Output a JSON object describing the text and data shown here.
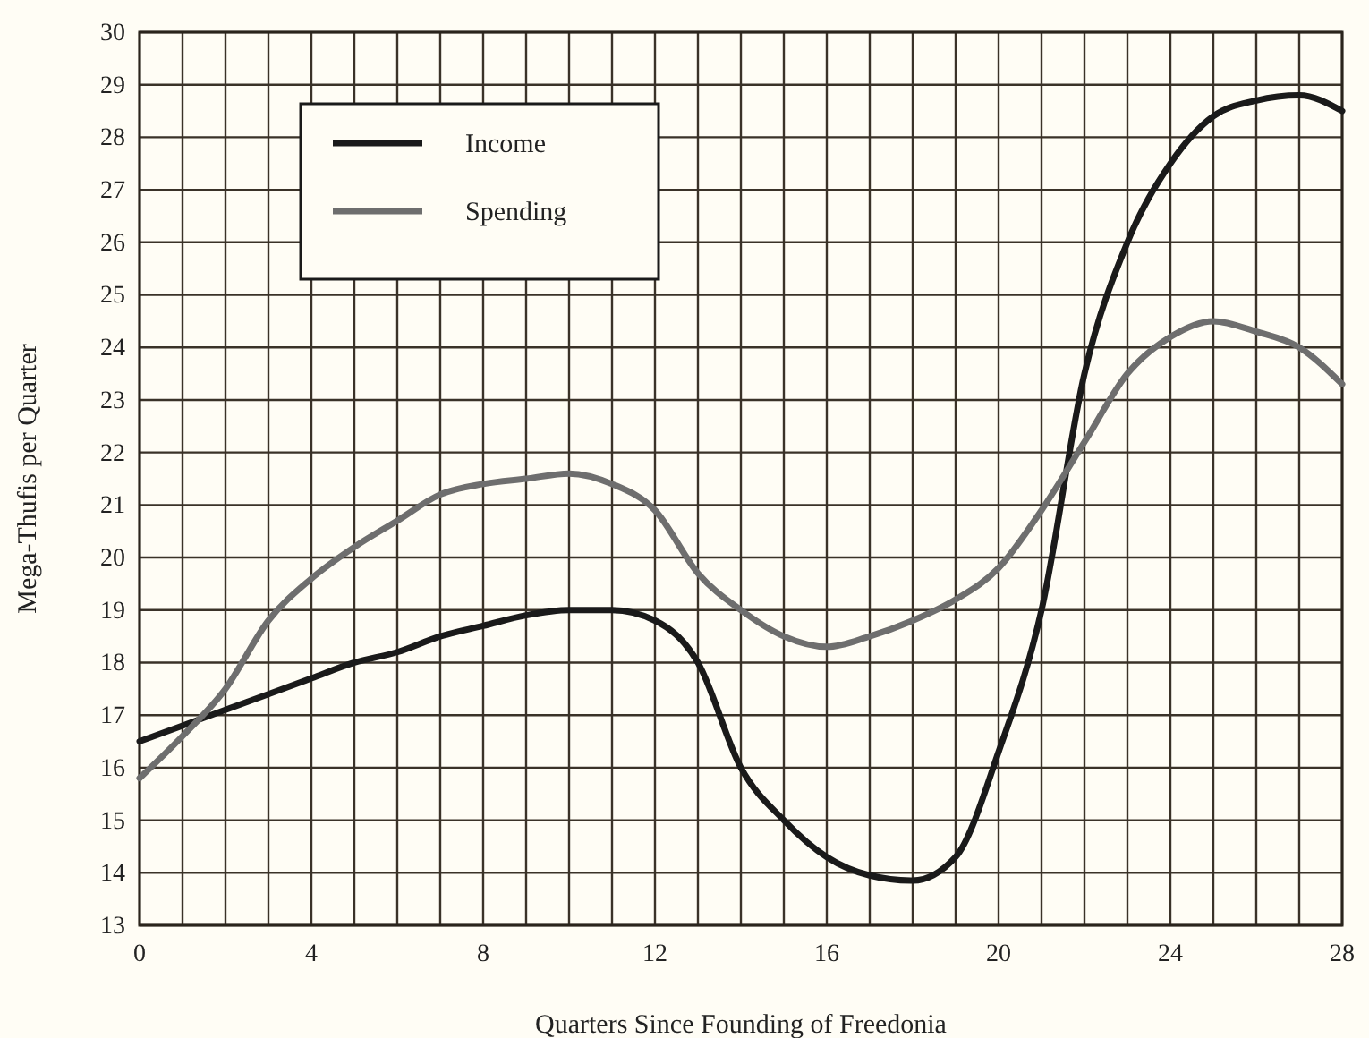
{
  "chart_data": {
    "type": "line",
    "xlabel": "Quarters Since Founding of Freedonia",
    "ylabel": "Mega-Thufis per Quarter",
    "x": [
      0,
      1,
      2,
      3,
      4,
      5,
      6,
      7,
      8,
      9,
      10,
      11,
      12,
      13,
      14,
      15,
      16,
      17,
      18,
      19,
      20,
      21,
      22,
      23,
      24,
      25,
      26,
      27,
      28
    ],
    "series": [
      {
        "name": "Income",
        "color": "#1a1a1a",
        "values": [
          16.5,
          16.8,
          17.1,
          17.4,
          17.7,
          18.0,
          18.2,
          18.5,
          18.7,
          18.9,
          19.0,
          19.0,
          18.8,
          18.0,
          16.0,
          15.0,
          14.3,
          13.95,
          13.85,
          14.3,
          16.3,
          19.0,
          23.5,
          26.0,
          27.5,
          28.4,
          28.7,
          28.8,
          28.5
        ]
      },
      {
        "name": "Spending",
        "color": "#6e6e6e",
        "values": [
          15.8,
          16.6,
          17.5,
          18.8,
          19.6,
          20.2,
          20.7,
          21.2,
          21.4,
          21.5,
          21.6,
          21.4,
          20.9,
          19.7,
          19.0,
          18.5,
          18.3,
          18.5,
          18.8,
          19.2,
          19.8,
          20.9,
          22.2,
          23.5,
          24.2,
          24.5,
          24.3,
          24.0,
          23.3
        ]
      }
    ],
    "xlim": [
      0,
      28
    ],
    "xticks": [
      0,
      {
        "value": 1,
        "label": null
      },
      {
        "value": 2,
        "label": null
      },
      {
        "value": 3,
        "label": null
      },
      4,
      {
        "value": 5,
        "label": null
      },
      {
        "value": 6,
        "label": null
      },
      {
        "value": 7,
        "label": null
      },
      8,
      {
        "value": 9,
        "label": null
      },
      {
        "value": 10,
        "label": null
      },
      {
        "value": 11,
        "label": null
      },
      12,
      {
        "value": 13,
        "label": null
      },
      {
        "value": 14,
        "label": null
      },
      {
        "value": 15,
        "label": null
      },
      16,
      {
        "value": 17,
        "label": null
      },
      {
        "value": 18,
        "label": null
      },
      {
        "value": 19,
        "label": null
      },
      20,
      {
        "value": 21,
        "label": null
      },
      {
        "value": 22,
        "label": null
      },
      {
        "value": 23,
        "label": null
      },
      24,
      {
        "value": 25,
        "label": null
      },
      {
        "value": 26,
        "label": null
      },
      {
        "value": 27,
        "label": null
      },
      28
    ],
    "ylim": [
      13,
      30
    ],
    "yticks": [
      13,
      14,
      15,
      16,
      17,
      18,
      19,
      20,
      21,
      22,
      23,
      24,
      25,
      26,
      27,
      28,
      29,
      30
    ],
    "grid": true,
    "legend": "top left",
    "marker": "none",
    "line_style": "solid"
  }
}
